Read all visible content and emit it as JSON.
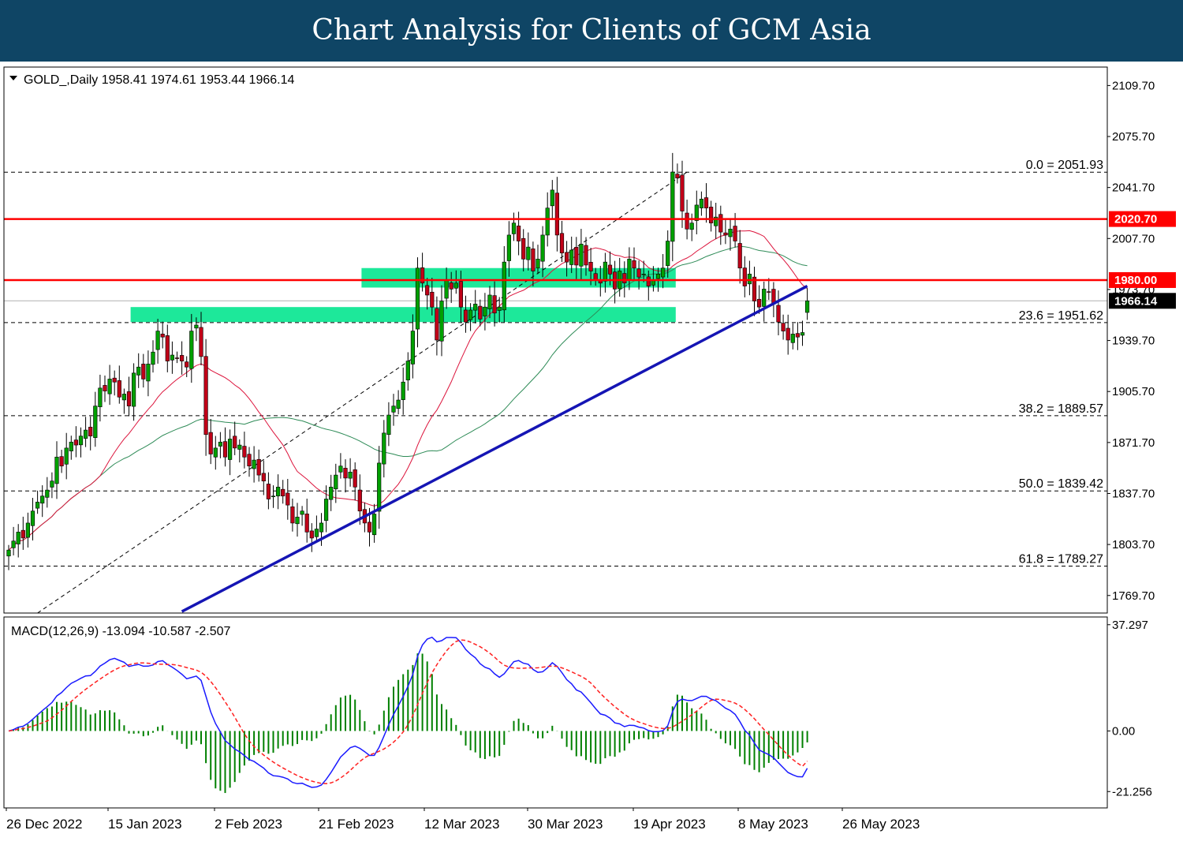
{
  "header": {
    "title": "Chart Analysis for Clients of GCM Asia"
  },
  "colors": {
    "banner": "#0f4565",
    "bull": "#00a000",
    "bear": "#c00018",
    "resistance": "#ff0000",
    "support_zone": "#1de89a",
    "trendline": "#1515b4",
    "ma_fast": "#dc143c",
    "ma_slow": "#2e8b57",
    "macd_line": "#1a1aff",
    "signal_line": "#ff2020",
    "histogram": "#008000"
  },
  "chart_data": [
    {
      "type": "candlestick",
      "symbol_line": "GOLD_,Daily  1958.41 1974.61 1953.44 1966.14",
      "ohlc": {
        "open": 1958.41,
        "high": 1974.61,
        "low": 1953.44,
        "close": 1966.14
      },
      "ylim": [
        1758,
        2122
      ],
      "y_ticks": [
        "2109.70",
        "2075.70",
        "2041.70",
        "2007.70",
        "1973.70",
        "1939.70",
        "1905.70",
        "1871.70",
        "1837.70",
        "1803.70",
        "1769.70"
      ],
      "x_ticks": [
        "26 Dec 2022",
        "15 Jan 2023",
        "2 Feb 2023",
        "21 Feb 2023",
        "12 Mar 2023",
        "30 Mar 2023",
        "19 Apr 2023",
        "8 May 2023",
        "26 May 2023"
      ],
      "fibonacci": [
        {
          "label": "0.0 = 2051.93",
          "value": 2051.93
        },
        {
          "label": "23.6 = 1951.62",
          "value": 1951.62
        },
        {
          "label": "38.2 = 1889.57",
          "value": 1889.57
        },
        {
          "label": "50.0 = 1839.42",
          "value": 1839.42
        },
        {
          "label": "61.8 = 1789.27",
          "value": 1789.27
        }
      ],
      "resistance_levels": [
        {
          "label": "2020.70",
          "value": 2020.7
        },
        {
          "label": "1980.00",
          "value": 1980.0
        }
      ],
      "current_price": {
        "label": "1966.14",
        "value": 1966.14
      },
      "support_zones": [
        {
          "from": 1975,
          "to": 1988,
          "start_index": 74,
          "end_index": 138
        },
        {
          "from": 1952,
          "to": 1962,
          "start_index": 26,
          "end_index": 138
        }
      ],
      "trendline": {
        "start": {
          "index": 36,
          "value": 1759
        },
        "end": {
          "index": 166,
          "value": 1976
        }
      },
      "channel_line": {
        "start": {
          "index": 6,
          "value": 1758
        },
        "end": {
          "index": 141,
          "value": 2052
        }
      },
      "closes": [
        1800,
        1806,
        1812,
        1808,
        1818,
        1826,
        1832,
        1836,
        1840,
        1846,
        1862,
        1856,
        1868,
        1872,
        1870,
        1876,
        1880,
        1876,
        1896,
        1908,
        1906,
        1914,
        1912,
        1902,
        1904,
        1896,
        1918,
        1922,
        1914,
        1924,
        1932,
        1946,
        1942,
        1926,
        1930,
        1928,
        1926,
        1922,
        1946,
        1950,
        1929,
        1877,
        1864,
        1868,
        1872,
        1862,
        1874,
        1868,
        1870,
        1862,
        1856,
        1860,
        1850,
        1846,
        1834,
        1836,
        1842,
        1836,
        1830,
        1818,
        1822,
        1826,
        1812,
        1808,
        1814,
        1818,
        1834,
        1842,
        1850,
        1856,
        1848,
        1852,
        1842,
        1826,
        1818,
        1812,
        1824,
        1858,
        1878,
        1890,
        1896,
        1900,
        1912,
        1926,
        1946,
        1988,
        1978,
        1970,
        1962,
        1940,
        1966,
        1980,
        1974,
        1978,
        1962,
        1952,
        1960,
        1964,
        1954,
        1962,
        1970,
        1958,
        1962,
        1992,
        2010,
        2018,
        2006,
        1994,
        2002,
        1986,
        1994,
        2010,
        2028,
        2040,
        2010,
        1998,
        1992,
        2000,
        1990,
        2004,
        1990,
        1986,
        1980,
        1978,
        1992,
        1984,
        1974,
        1986,
        1978,
        1994,
        1988,
        1982,
        1984,
        1976,
        1980,
        1984,
        1988,
        2006,
        2052,
        2048,
        2026,
        2014,
        2018,
        2030,
        2034,
        2028,
        2018,
        2022,
        2012,
        2010,
        2014,
        2006,
        1988,
        1976,
        1984,
        1966,
        1962,
        1974,
        1972,
        1964,
        1952,
        1946,
        1940,
        1944,
        1942,
        1945,
        1966
      ],
      "moving_averages": [
        "fast (red)",
        "slow (green)"
      ]
    },
    {
      "type": "macd",
      "label": "MACD(12,26,9) -13.094 -10.587 -2.507",
      "params": [
        12,
        26,
        9
      ],
      "values": {
        "main": -13.094,
        "signal": -10.587,
        "histogram": -2.507
      },
      "ylim": [
        -27,
        40
      ],
      "y_ticks": [
        "37.297",
        "0.00",
        "-21.256"
      ]
    }
  ]
}
